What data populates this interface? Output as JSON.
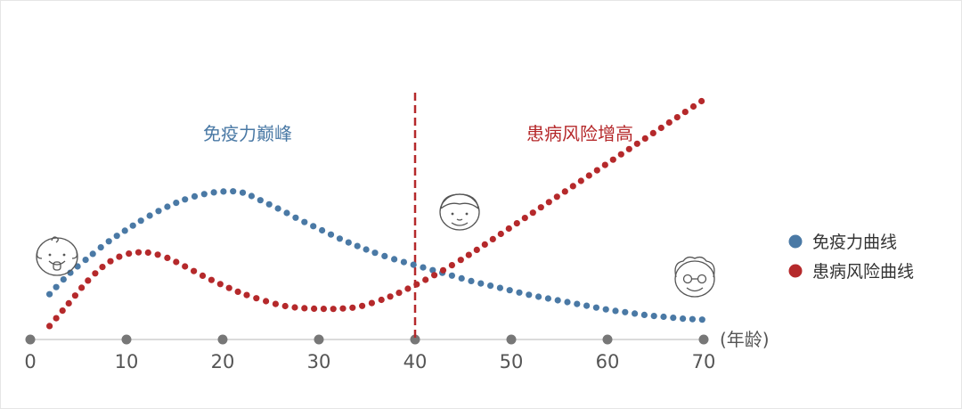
{
  "chart_data": {
    "type": "line",
    "x_ticks": [
      0,
      10,
      20,
      30,
      40,
      50,
      60,
      70
    ],
    "x_unit_label": "(年龄)",
    "xlim": [
      0,
      70
    ],
    "series": [
      {
        "name": "免疫力曲线",
        "color": "#4a79a5",
        "x": [
          2,
          4,
          6,
          8,
          10,
          12,
          14,
          16,
          18,
          20,
          22,
          24,
          26,
          28,
          30,
          32,
          34,
          36,
          38,
          40,
          42,
          44,
          46,
          48,
          50,
          52,
          54,
          56,
          58,
          60,
          62,
          64,
          66,
          68,
          70
        ],
        "y": [
          0.4,
          0.62,
          0.8,
          0.97,
          1.11,
          1.24,
          1.35,
          1.44,
          1.5,
          1.53,
          1.52,
          1.43,
          1.33,
          1.22,
          1.12,
          1.02,
          0.93,
          0.85,
          0.78,
          0.72,
          0.66,
          0.6,
          0.54,
          0.49,
          0.44,
          0.39,
          0.35,
          0.31,
          0.27,
          0.23,
          0.2,
          0.17,
          0.15,
          0.13,
          0.12
        ]
      },
      {
        "name": "患病风险曲线",
        "color": "#b5292b",
        "x": [
          2,
          4,
          6,
          8,
          10,
          12,
          14,
          16,
          18,
          20,
          22,
          24,
          26,
          28,
          30,
          32,
          34,
          36,
          38,
          40,
          42,
          44,
          46,
          48,
          50,
          52,
          54,
          56,
          58,
          60,
          62,
          64,
          66,
          68,
          70
        ],
        "y": [
          0.05,
          0.3,
          0.55,
          0.74,
          0.84,
          0.86,
          0.81,
          0.71,
          0.6,
          0.5,
          0.41,
          0.34,
          0.28,
          0.25,
          0.24,
          0.24,
          0.26,
          0.32,
          0.4,
          0.5,
          0.61,
          0.73,
          0.86,
          1.0,
          1.14,
          1.28,
          1.42,
          1.56,
          1.7,
          1.84,
          1.98,
          2.12,
          2.26,
          2.4,
          2.54
        ]
      }
    ],
    "vertical_marker": {
      "x": 40,
      "color": "#b5292b",
      "style": "dashed"
    },
    "annotations": [
      {
        "text": "免疫力巅峰",
        "color": "#4a79a5"
      },
      {
        "text": "患病风险增高",
        "color": "#b5292b"
      }
    ],
    "legend_position": "right",
    "grid": false,
    "icons": [
      "baby-face-icon",
      "middle-aged-face-icon",
      "elderly-face-icon"
    ]
  }
}
